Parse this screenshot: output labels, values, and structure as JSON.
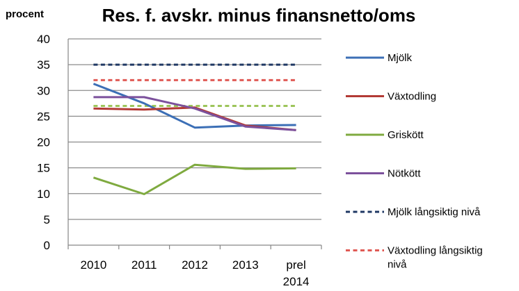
{
  "chart_data": {
    "type": "line",
    "title": "Res. f. avskr. minus finansnetto/oms",
    "ylabel": "procent",
    "xlabel": "",
    "categories": [
      "2010",
      "2011",
      "2012",
      "2013",
      "prel 2014"
    ],
    "category_lines": [
      [
        "2010"
      ],
      [
        "2011"
      ],
      [
        "2012"
      ],
      [
        "2013"
      ],
      [
        "prel",
        "2014"
      ]
    ],
    "ylim": [
      0,
      40
    ],
    "yticks": [
      0,
      5,
      10,
      15,
      20,
      25,
      30,
      35,
      40
    ],
    "grid": true,
    "legend_position": "right",
    "series": [
      {
        "name": "Mjölk",
        "name_lines": [
          "Mjölk"
        ],
        "color": "#3c6fb6",
        "dashed": false,
        "values": [
          31.3,
          27.5,
          22.8,
          23.2,
          23.3
        ]
      },
      {
        "name": "Växtodling",
        "name_lines": [
          "Växtodling"
        ],
        "color": "#b33a35",
        "dashed": false,
        "values": [
          26.5,
          26.3,
          26.7,
          23.2,
          22.3
        ]
      },
      {
        "name": "Grisкött",
        "name_lines": [
          "Griskött"
        ],
        "color": "#7faa3f",
        "dashed": false,
        "values": [
          13.1,
          9.9,
          15.6,
          14.8,
          14.9
        ]
      },
      {
        "name": "Nötkött",
        "name_lines": [
          "Nötkött"
        ],
        "color": "#7c519c",
        "dashed": false,
        "values": [
          28.7,
          28.7,
          26.5,
          23.0,
          22.3
        ]
      },
      {
        "name": "Mjölk långsiktig nivå",
        "name_lines": [
          "Mjölk långsiktig nivå"
        ],
        "color": "#1f3864",
        "dashed": true,
        "values": [
          35,
          35,
          35,
          35,
          35
        ]
      },
      {
        "name": "Växtodling långsiktig nivå",
        "name_lines": [
          "Växtodling långsiktig",
          "nivå"
        ],
        "color": "#e05a55",
        "dashed": true,
        "values": [
          32,
          32,
          32,
          32,
          32
        ]
      },
      {
        "name": "",
        "name_lines": [],
        "color": "#9dc55a",
        "dashed": true,
        "values": [
          27,
          27,
          27,
          27,
          27
        ]
      }
    ]
  }
}
